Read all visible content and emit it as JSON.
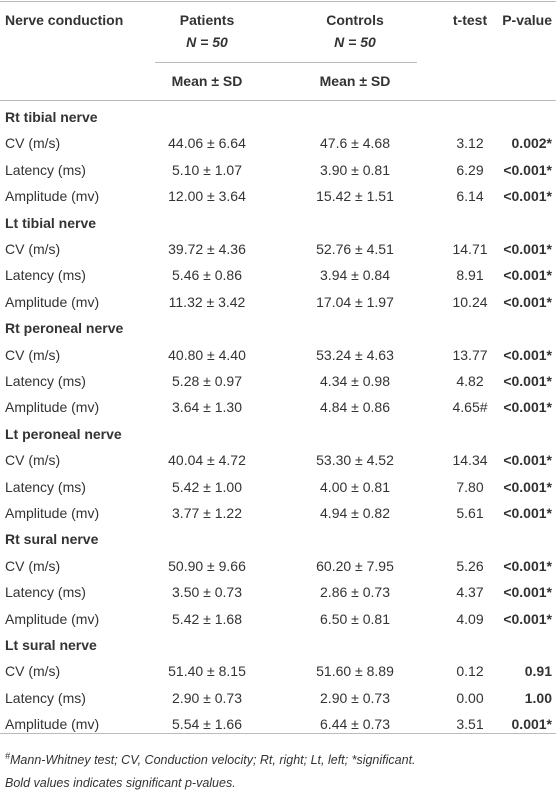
{
  "table": {
    "header": {
      "col0": "Nerve conduction",
      "patients": "Patients",
      "patients_n": "N = 50",
      "controls": "Controls",
      "controls_n": "N = 50",
      "ttest": "t-test",
      "pvalue": "P-value",
      "patients_sub": "Mean ± SD",
      "controls_sub": "Mean ± SD"
    },
    "sections": [
      {
        "title": "Rt tibial nerve",
        "rows": [
          [
            "CV (m/s)",
            "44.06 ± 6.64",
            "47.6 ± 4.68",
            "3.12",
            "0.002*"
          ],
          [
            "Latency (ms)",
            "5.10 ± 1.07",
            "3.90 ± 0.81",
            "6.29",
            "<0.001*"
          ],
          [
            "Amplitude (mv)",
            "12.00 ± 3.64",
            "15.42 ± 1.51",
            "6.14",
            "<0.001*"
          ]
        ]
      },
      {
        "title": "Lt tibial nerve",
        "rows": [
          [
            "CV (m/s)",
            "39.72 ± 4.36",
            "52.76 ± 4.51",
            "14.71",
            "<0.001*"
          ],
          [
            "Latency (ms)",
            "5.46 ± 0.86",
            "3.94 ± 0.84",
            "8.91",
            "<0.001*"
          ],
          [
            "Amplitude (mv)",
            "11.32 ± 3.42",
            "17.04 ± 1.97",
            "10.24",
            "<0.001*"
          ]
        ]
      },
      {
        "title": "Rt peroneal nerve",
        "rows": [
          [
            "CV (m/s)",
            "40.80 ± 4.40",
            "53.24 ± 4.63",
            "13.77",
            "<0.001*"
          ],
          [
            "Latency (ms)",
            "5.28 ± 0.97",
            "4.34 ± 0.98",
            "4.82",
            "<0.001*"
          ],
          [
            "Amplitude (mv)",
            "3.64 ± 1.30",
            "4.84 ± 0.86",
            "4.65#",
            "<0.001*"
          ]
        ]
      },
      {
        "title": "Lt peroneal nerve",
        "rows": [
          [
            "CV (m/s)",
            "40.04 ± 4.72",
            "53.30 ± 4.52",
            "14.34",
            "<0.001*"
          ],
          [
            "Latency (ms)",
            "5.42 ± 1.00",
            "4.00 ± 0.81",
            "7.80",
            "<0.001*"
          ],
          [
            "Amplitude (mv)",
            "3.77 ± 1.22",
            "4.94 ± 0.82",
            "5.61",
            "<0.001*"
          ]
        ]
      },
      {
        "title": "Rt sural nerve",
        "rows": [
          [
            "CV (m/s)",
            "50.90 ± 9.66",
            "60.20 ± 7.95",
            "5.26",
            "<0.001*"
          ],
          [
            "Latency (ms)",
            "3.50 ± 0.73",
            "2.86 ± 0.73",
            "4.37",
            "<0.001*"
          ],
          [
            "Amplitude (mv)",
            "5.42 ± 1.68",
            "6.50 ± 0.81",
            "4.09",
            "<0.001*"
          ]
        ]
      },
      {
        "title": "Lt sural nerve",
        "rows": [
          [
            "CV (m/s)",
            "51.40 ± 8.15",
            "51.60 ± 8.89",
            "0.12",
            "0.91"
          ],
          [
            "Latency (ms)",
            "2.90 ± 0.73",
            "2.90 ± 0.73",
            "0.00",
            "1.00"
          ],
          [
            "Amplitude (mv)",
            "5.54 ± 1.66",
            "6.44 ± 0.73",
            "3.51",
            "0.001*"
          ]
        ]
      }
    ]
  },
  "footnote": {
    "marker": "#",
    "line1": "Mann-Whitney test; CV, Conduction velocity; Rt, right; Lt, left; *significant.",
    "line2": "Bold values indicates significant p-values."
  }
}
